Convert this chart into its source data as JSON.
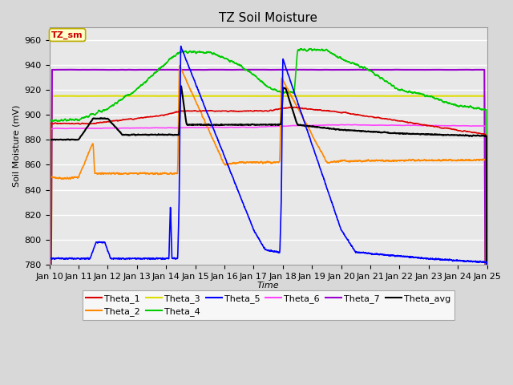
{
  "title": "TZ Soil Moisture",
  "ylabel": "Soil Moisture (mV)",
  "xlabel": "Time",
  "ylim": [
    780,
    970
  ],
  "yticks": [
    780,
    800,
    820,
    840,
    860,
    880,
    900,
    920,
    940,
    960
  ],
  "xtick_labels": [
    "Jan 10",
    "Jan 11",
    "Jan 12",
    "Jan 13",
    "Jan 14",
    "Jan 15",
    "Jan 16",
    "Jan 17",
    "Jan 18",
    "Jan 19",
    "Jan 20",
    "Jan 21",
    "Jan 22",
    "Jan 23",
    "Jan 24",
    "Jan 25"
  ],
  "legend_box_text": "TZ_sm",
  "legend_box_color": "#ffffcc",
  "legend_box_border": "#bbaa00",
  "legend_box_text_color": "#cc0000",
  "colors": {
    "Theta_1": "#dd0000",
    "Theta_2": "#ff8800",
    "Theta_3": "#dddd00",
    "Theta_4": "#00cc00",
    "Theta_5": "#0000ff",
    "Theta_6": "#ff44ff",
    "Theta_7": "#9900cc",
    "Theta_avg": "#000000"
  },
  "bg_color": "#e8e8e8",
  "grid_color": "#ffffff",
  "title_fontsize": 11,
  "axis_label_fontsize": 8,
  "tick_fontsize": 8
}
